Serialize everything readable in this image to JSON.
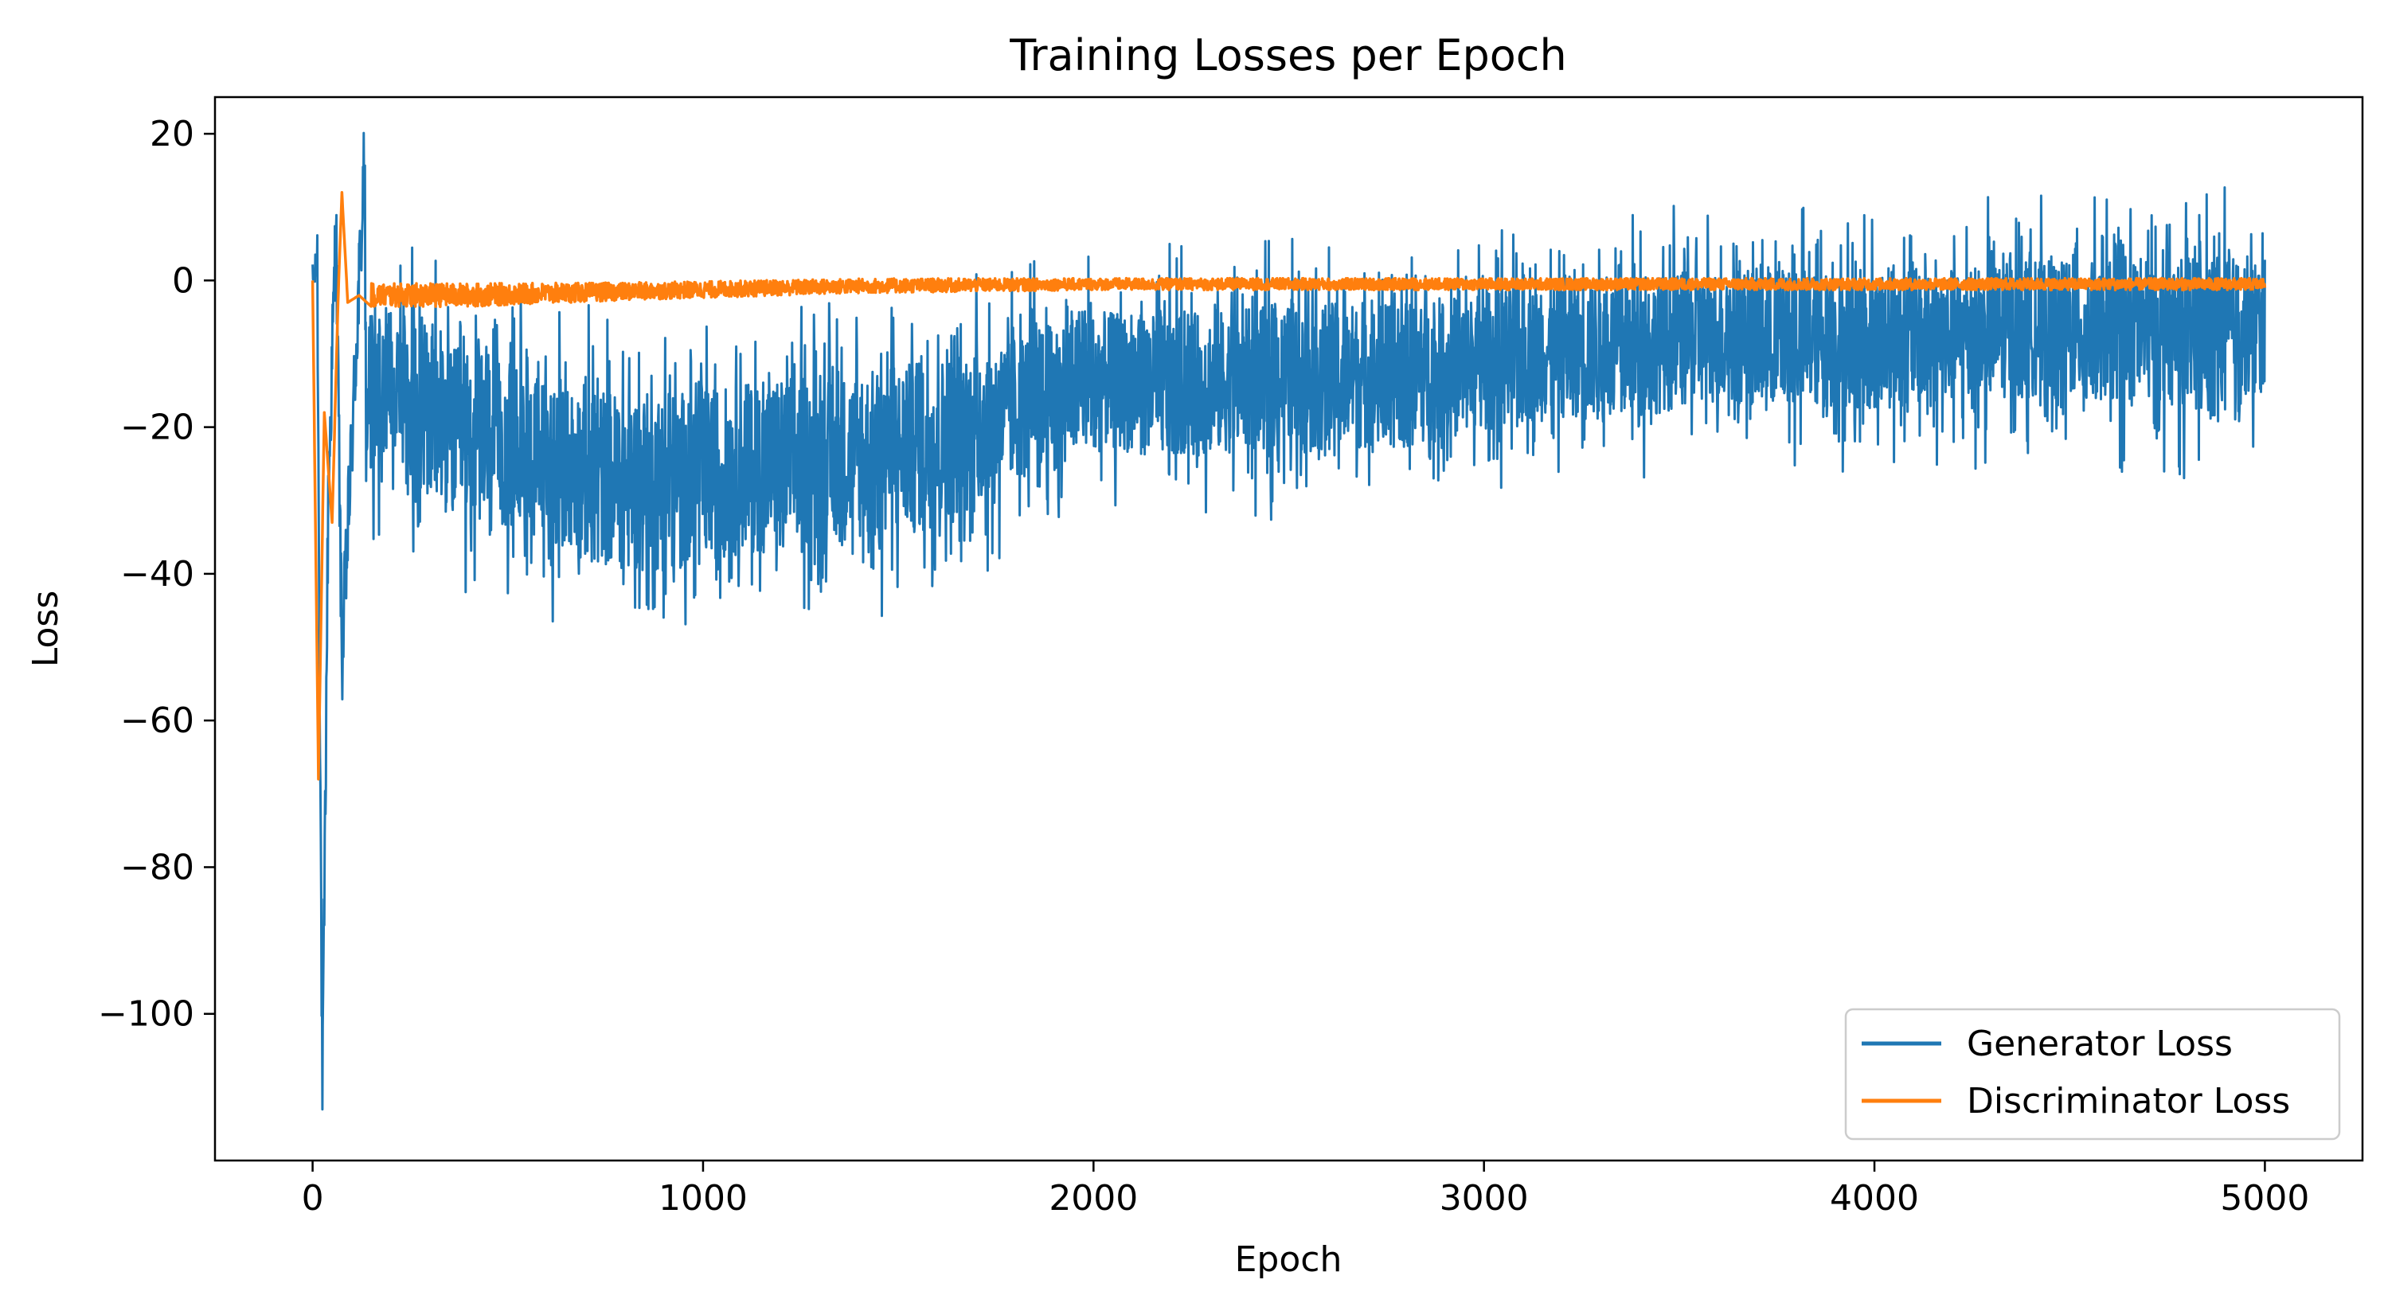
{
  "chart_data": {
    "type": "line",
    "title": "Training Losses per Epoch",
    "xlabel": "Epoch",
    "ylabel": "Loss",
    "xlim": [
      -250,
      5250
    ],
    "ylim": [
      -120,
      25
    ],
    "x_ticks": [
      0,
      1000,
      2000,
      3000,
      4000,
      5000
    ],
    "y_ticks": [
      20,
      0,
      -20,
      -40,
      -60,
      -80,
      -100
    ],
    "grid": false,
    "legend_position": "lower-right",
    "epochs": [
      0,
      5000
    ],
    "series": [
      {
        "name": "Generator Loss",
        "color": "#1f77b4",
        "key_points": [
          {
            "x": 0,
            "y": 0
          },
          {
            "x": 12,
            "y": 2
          },
          {
            "x": 25,
            "y": -113
          },
          {
            "x": 40,
            "y": -30
          },
          {
            "x": 60,
            "y": 8
          },
          {
            "x": 75,
            "y": -52
          },
          {
            "x": 135,
            "y": 18
          }
        ],
        "envelope": [
          {
            "x": 100,
            "upper": 10,
            "lower": -45
          },
          {
            "x": 200,
            "upper": 7,
            "lower": -32
          },
          {
            "x": 300,
            "upper": 4,
            "lower": -42
          },
          {
            "x": 400,
            "upper": 2,
            "lower": -45
          },
          {
            "x": 500,
            "upper": 0,
            "lower": -45
          },
          {
            "x": 600,
            "upper": -2,
            "lower": -47
          },
          {
            "x": 700,
            "upper": -2,
            "lower": -50
          },
          {
            "x": 800,
            "upper": -3,
            "lower": -52
          },
          {
            "x": 900,
            "upper": -3,
            "lower": -52
          },
          {
            "x": 1000,
            "upper": -3,
            "lower": -50
          },
          {
            "x": 1200,
            "upper": -2,
            "lower": -48
          },
          {
            "x": 1400,
            "upper": -1,
            "lower": -47
          },
          {
            "x": 1600,
            "upper": 1,
            "lower": -45
          },
          {
            "x": 1800,
            "upper": 3,
            "lower": -38
          },
          {
            "x": 2000,
            "upper": 5,
            "lower": -32
          },
          {
            "x": 2200,
            "upper": 5,
            "lower": -34
          },
          {
            "x": 2400,
            "upper": 6,
            "lower": -33
          },
          {
            "x": 2600,
            "upper": 7,
            "lower": -33
          },
          {
            "x": 2800,
            "upper": 7,
            "lower": -33
          },
          {
            "x": 3000,
            "upper": 8,
            "lower": -30
          },
          {
            "x": 3200,
            "upper": 9,
            "lower": -28
          },
          {
            "x": 3400,
            "upper": 10,
            "lower": -28
          },
          {
            "x": 3600,
            "upper": 11,
            "lower": -26
          },
          {
            "x": 3800,
            "upper": 11,
            "lower": -27
          },
          {
            "x": 4000,
            "upper": 11,
            "lower": -27
          },
          {
            "x": 4200,
            "upper": 11,
            "lower": -26
          },
          {
            "x": 4400,
            "upper": 12,
            "lower": -25
          },
          {
            "x": 4600,
            "upper": 12,
            "lower": -26
          },
          {
            "x": 4800,
            "upper": 13,
            "lower": -27
          },
          {
            "x": 5000,
            "upper": 13,
            "lower": -25
          }
        ]
      },
      {
        "name": "Discriminator Loss",
        "color": "#ff7f0e",
        "key_points": [
          {
            "x": 0,
            "y": 0
          },
          {
            "x": 15,
            "y": -68
          },
          {
            "x": 30,
            "y": -18
          },
          {
            "x": 50,
            "y": -33
          },
          {
            "x": 65,
            "y": -3
          },
          {
            "x": 75,
            "y": 12
          },
          {
            "x": 90,
            "y": -3
          },
          {
            "x": 120,
            "y": -2
          }
        ],
        "envelope": [
          {
            "x": 150,
            "upper": 0,
            "lower": -4
          },
          {
            "x": 400,
            "upper": 0,
            "lower": -4
          },
          {
            "x": 800,
            "upper": 0,
            "lower": -3
          },
          {
            "x": 1400,
            "upper": 0.5,
            "lower": -2
          },
          {
            "x": 2000,
            "upper": 0.5,
            "lower": -1.5
          },
          {
            "x": 3000,
            "upper": 0.5,
            "lower": -1.5
          },
          {
            "x": 4000,
            "upper": 0.5,
            "lower": -1.5
          },
          {
            "x": 5000,
            "upper": 0.5,
            "lower": -1.5
          }
        ]
      }
    ]
  }
}
